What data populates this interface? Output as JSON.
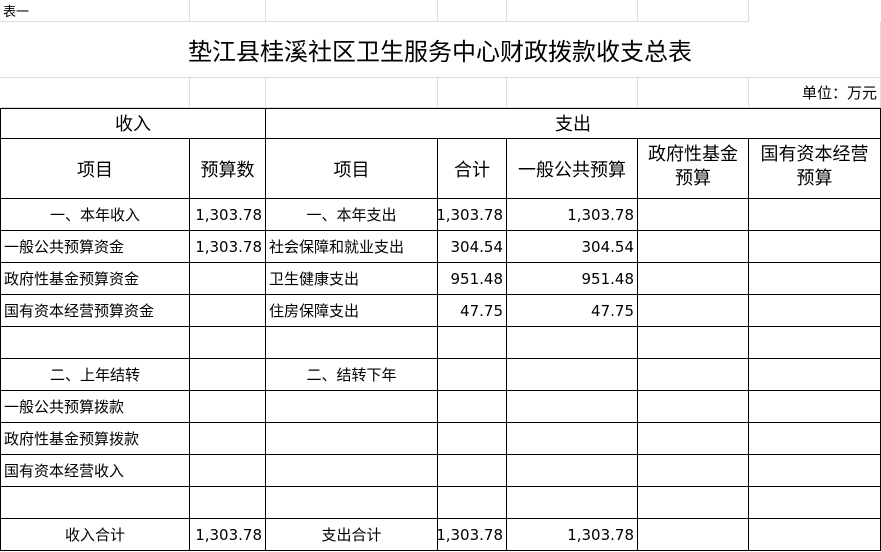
{
  "header": {
    "label": "表一",
    "title": "垫江县桂溪社区卫生服务中心财政拨款收支总表",
    "unit": "单位：万元"
  },
  "table": {
    "groups": [
      "收入",
      "支出"
    ],
    "columns": [
      "项目",
      "预算数",
      "项目",
      "合计",
      "一般公共预算",
      "政府性基金预算",
      "国有资本经营预算"
    ],
    "rows": [
      [
        "一、本年收入",
        "1,303.78",
        "一、本年支出",
        "1,303.78",
        "1,303.78",
        null,
        null
      ],
      [
        "一般公共预算资金",
        "1,303.78",
        "社会保障和就业支出",
        "304.54",
        "304.54",
        null,
        null
      ],
      [
        "政府性基金预算资金",
        null,
        "卫生健康支出",
        "951.48",
        "951.48",
        null,
        null
      ],
      [
        "国有资本经营预算资金",
        null,
        "住房保障支出",
        "47.75",
        "47.75",
        null,
        null
      ],
      [
        null,
        null,
        null,
        null,
        null,
        null,
        null
      ],
      [
        "二、上年结转",
        null,
        "二、结转下年",
        null,
        null,
        null,
        null
      ],
      [
        "一般公共预算拨款",
        null,
        null,
        null,
        null,
        null,
        null
      ],
      [
        "政府性基金预算拨款",
        null,
        null,
        null,
        null,
        null,
        null
      ],
      [
        "国有资本经营收入",
        null,
        null,
        null,
        null,
        null,
        null
      ],
      [
        null,
        null,
        null,
        null,
        null,
        null,
        null
      ],
      [
        "收入合计",
        "1,303.78",
        "支出合计",
        "1,303.78",
        "1,303.78",
        null,
        null
      ]
    ]
  }
}
